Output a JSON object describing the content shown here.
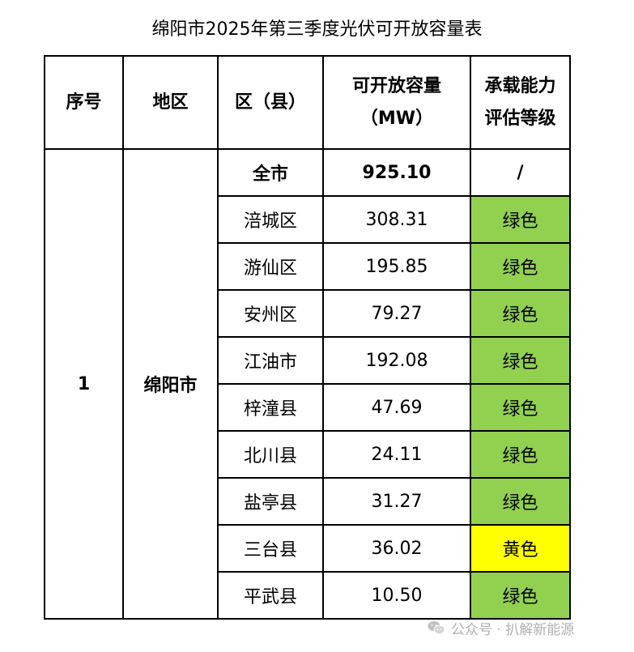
{
  "title": "绵阳市2025年第三季度光伏可开放容量表",
  "table": {
    "headers": {
      "seq": "序号",
      "region": "地区",
      "district": "区（县）",
      "capacity_line1": "可开放容量",
      "capacity_line2": "（MW）",
      "rating_line1": "承载能力",
      "rating_line2": "评估等级"
    },
    "seq": "1",
    "region": "绵阳市",
    "total": {
      "district": "全市",
      "capacity": "925.10",
      "rating": "/"
    },
    "rows": [
      {
        "district": "涪城区",
        "capacity": "308.31",
        "rating": "绿色"
      },
      {
        "district": "游仙区",
        "capacity": "195.85",
        "rating": "绿色"
      },
      {
        "district": "安州区",
        "capacity": "79.27",
        "rating": "绿色"
      },
      {
        "district": "江油市",
        "capacity": "192.08",
        "rating": "绿色"
      },
      {
        "district": "梓潼县",
        "capacity": "47.69",
        "rating": "绿色"
      },
      {
        "district": "北川县",
        "capacity": "24.11",
        "rating": "绿色"
      },
      {
        "district": "盐亭县",
        "capacity": "31.27",
        "rating": "绿色"
      },
      {
        "district": "三台县",
        "capacity": "36.02",
        "rating": "黄色"
      },
      {
        "district": "平武县",
        "capacity": "10.50",
        "rating": "绿色"
      }
    ],
    "rating_colors": {
      "绿色": "#92d050",
      "黄色": "#ffff00"
    }
  },
  "watermark": {
    "icon": "wechat-icon",
    "text": "公众号 · 扒解新能源"
  }
}
